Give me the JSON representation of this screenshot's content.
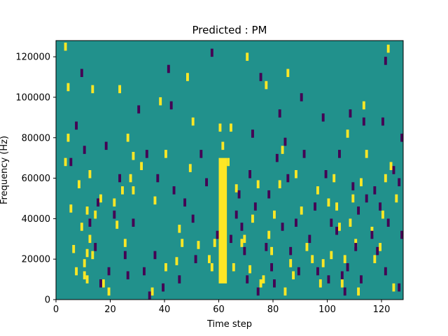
{
  "chart_data": {
    "type": "heatmap",
    "title": "Predicted : PM",
    "xlabel": "Time step",
    "ylabel": "Frequency (Hz)",
    "xlim": [
      0,
      128
    ],
    "ylim": [
      0,
      128000
    ],
    "grid": false,
    "xticks": [
      {
        "value": 0,
        "label": "0"
      },
      {
        "value": 20,
        "label": "20"
      },
      {
        "value": 40,
        "label": "40"
      },
      {
        "value": 60,
        "label": "60"
      },
      {
        "value": 80,
        "label": "80"
      },
      {
        "value": 100,
        "label": "100"
      },
      {
        "value": 120,
        "label": "120"
      }
    ],
    "yticks": [
      {
        "value": 0,
        "label": "0"
      },
      {
        "value": 20000,
        "label": "20000"
      },
      {
        "value": 40000,
        "label": "40000"
      },
      {
        "value": 60000,
        "label": "60000"
      },
      {
        "value": 80000,
        "label": "80000"
      },
      {
        "value": 100000,
        "label": "100000"
      },
      {
        "value": 120000,
        "label": "120000"
      }
    ],
    "colors": {
      "background_level": "#21918c",
      "high_level": "#fde725",
      "low_level": "#440154"
    },
    "band": {
      "x_range": [
        60,
        63
      ],
      "y_range": [
        8000,
        70000
      ],
      "level": "high"
    },
    "high_cells": [
      [
        3,
        125000
      ],
      [
        4,
        105000
      ],
      [
        4,
        80000
      ],
      [
        3,
        68000
      ],
      [
        5,
        45000
      ],
      [
        6,
        25000
      ],
      [
        7,
        14000
      ],
      [
        8,
        57000
      ],
      [
        9,
        36000
      ],
      [
        10,
        12000
      ],
      [
        10,
        18000
      ],
      [
        11,
        44000
      ],
      [
        11,
        23000
      ],
      [
        11,
        10000
      ],
      [
        12,
        30000
      ],
      [
        12,
        62000
      ],
      [
        13,
        22000
      ],
      [
        13,
        104000
      ],
      [
        14,
        42000
      ],
      [
        16,
        50000
      ],
      [
        17,
        8000
      ],
      [
        19,
        4000
      ],
      [
        21,
        48000
      ],
      [
        22,
        37000
      ],
      [
        23,
        104000
      ],
      [
        24,
        54000
      ],
      [
        25,
        28000
      ],
      [
        26,
        80000
      ],
      [
        27,
        60000
      ],
      [
        28,
        54000
      ],
      [
        28,
        71000
      ],
      [
        31,
        66000
      ],
      [
        35,
        4000
      ],
      [
        36,
        49000
      ],
      [
        38,
        98000
      ],
      [
        40,
        72000
      ],
      [
        40,
        16000
      ],
      [
        44,
        19000
      ],
      [
        45,
        35000
      ],
      [
        46,
        28000
      ],
      [
        48,
        110000
      ],
      [
        49,
        65000
      ],
      [
        50,
        88000
      ],
      [
        52,
        27000
      ],
      [
        56,
        20000
      ],
      [
        57,
        16000
      ],
      [
        58,
        28000
      ],
      [
        60,
        85000
      ],
      [
        61,
        76000
      ],
      [
        63,
        68000
      ],
      [
        64,
        85000
      ],
      [
        65,
        16000
      ],
      [
        66,
        55000
      ],
      [
        68,
        28000
      ],
      [
        69,
        30000
      ],
      [
        70,
        120000
      ],
      [
        71,
        15000
      ],
      [
        72,
        40000
      ],
      [
        74,
        57000
      ],
      [
        75,
        8000
      ],
      [
        76,
        10000
      ],
      [
        77,
        106000
      ],
      [
        78,
        32000
      ],
      [
        79,
        24000
      ],
      [
        80,
        42000
      ],
      [
        82,
        57000
      ],
      [
        83,
        74000
      ],
      [
        84,
        4000
      ],
      [
        85,
        112000
      ],
      [
        86,
        18000
      ],
      [
        87,
        12000
      ],
      [
        88,
        62000
      ],
      [
        90,
        44000
      ],
      [
        92,
        26000
      ],
      [
        94,
        20000
      ],
      [
        96,
        54000
      ],
      [
        97,
        8000
      ],
      [
        98,
        18000
      ],
      [
        100,
        48000
      ],
      [
        101,
        22000
      ],
      [
        102,
        60000
      ],
      [
        103,
        46000
      ],
      [
        104,
        36000
      ],
      [
        105,
        8000
      ],
      [
        106,
        20000
      ],
      [
        107,
        82000
      ],
      [
        108,
        38000
      ],
      [
        109,
        50000
      ],
      [
        110,
        28000
      ],
      [
        111,
        4000
      ],
      [
        112,
        58000
      ],
      [
        113,
        96000
      ],
      [
        114,
        72000
      ],
      [
        116,
        34000
      ],
      [
        117,
        20000
      ],
      [
        119,
        26000
      ],
      [
        120,
        42000
      ],
      [
        121,
        60000
      ],
      [
        122,
        124000
      ],
      [
        123,
        66000
      ],
      [
        124,
        6000
      ],
      [
        125,
        50000
      ]
    ],
    "low_cells": [
      [
        5,
        68000
      ],
      [
        7,
        86000
      ],
      [
        9,
        112000
      ],
      [
        10,
        74000
      ],
      [
        12,
        38000
      ],
      [
        14,
        26000
      ],
      [
        15,
        48000
      ],
      [
        16,
        8000
      ],
      [
        18,
        76000
      ],
      [
        19,
        14000
      ],
      [
        21,
        42000
      ],
      [
        23,
        60000
      ],
      [
        25,
        22000
      ],
      [
        26,
        12000
      ],
      [
        28,
        38000
      ],
      [
        30,
        94000
      ],
      [
        32,
        14000
      ],
      [
        33,
        72000
      ],
      [
        34,
        2000
      ],
      [
        36,
        22000
      ],
      [
        37,
        60000
      ],
      [
        39,
        6000
      ],
      [
        41,
        114000
      ],
      [
        42,
        96000
      ],
      [
        43,
        54000
      ],
      [
        45,
        10000
      ],
      [
        47,
        48000
      ],
      [
        50,
        40000
      ],
      [
        51,
        20000
      ],
      [
        53,
        72000
      ],
      [
        55,
        58000
      ],
      [
        57,
        122000
      ],
      [
        59,
        32000
      ],
      [
        64,
        30000
      ],
      [
        66,
        42000
      ],
      [
        67,
        52000
      ],
      [
        68,
        36000
      ],
      [
        69,
        24000
      ],
      [
        70,
        10000
      ],
      [
        71,
        62000
      ],
      [
        72,
        82000
      ],
      [
        73,
        46000
      ],
      [
        74,
        4000
      ],
      [
        75,
        110000
      ],
      [
        77,
        26000
      ],
      [
        78,
        52000
      ],
      [
        79,
        16000
      ],
      [
        80,
        8000
      ],
      [
        81,
        70000
      ],
      [
        82,
        92000
      ],
      [
        83,
        36000
      ],
      [
        84,
        78000
      ],
      [
        85,
        60000
      ],
      [
        86,
        24000
      ],
      [
        88,
        38000
      ],
      [
        89,
        14000
      ],
      [
        90,
        100000
      ],
      [
        91,
        72000
      ],
      [
        93,
        30000
      ],
      [
        95,
        46000
      ],
      [
        96,
        14000
      ],
      [
        98,
        90000
      ],
      [
        99,
        62000
      ],
      [
        100,
        10000
      ],
      [
        101,
        38000
      ],
      [
        103,
        34000
      ],
      [
        104,
        72000
      ],
      [
        105,
        12000
      ],
      [
        106,
        4000
      ],
      [
        107,
        16000
      ],
      [
        108,
        92000
      ],
      [
        109,
        56000
      ],
      [
        110,
        26000
      ],
      [
        111,
        44000
      ],
      [
        112,
        10000
      ],
      [
        113,
        88000
      ],
      [
        114,
        50000
      ],
      [
        116,
        32000
      ],
      [
        117,
        54000
      ],
      [
        118,
        24000
      ],
      [
        119,
        46000
      ],
      [
        120,
        88000
      ],
      [
        121,
        14000
      ],
      [
        122,
        38000
      ],
      [
        124,
        64000
      ],
      [
        126,
        58000
      ],
      [
        127,
        32000
      ],
      [
        127,
        80000
      ],
      [
        126,
        6000
      ],
      [
        121,
        118000
      ]
    ]
  }
}
